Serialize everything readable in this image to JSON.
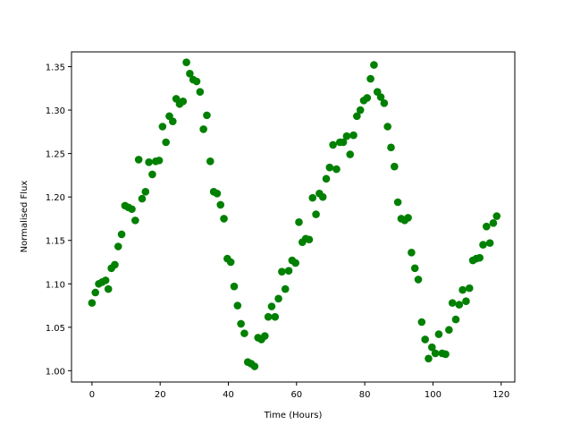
{
  "chart_data": {
    "type": "scatter",
    "xlabel": "Time (Hours)",
    "ylabel": "Normalised Flux",
    "xlim": [
      -6,
      124
    ],
    "ylim": [
      0.987,
      1.367
    ],
    "xticks": [
      0,
      20,
      40,
      60,
      80,
      100,
      120
    ],
    "yticks": [
      1.0,
      1.05,
      1.1,
      1.15,
      1.2,
      1.25,
      1.3,
      1.35
    ],
    "xtick_labels": [
      "0",
      "20",
      "40",
      "60",
      "80",
      "100",
      "120"
    ],
    "ytick_labels": [
      "1.00",
      "1.05",
      "1.10",
      "1.15",
      "1.20",
      "1.25",
      "1.30",
      "1.35"
    ],
    "grid": false,
    "marker_color": "#008000",
    "series": [
      {
        "points": [
          [
            0.0,
            1.078
          ],
          [
            1.0,
            1.09
          ],
          [
            2.0,
            1.1
          ],
          [
            3.0,
            1.102
          ],
          [
            4.0,
            1.104
          ],
          [
            4.8,
            1.094
          ],
          [
            5.7,
            1.118
          ],
          [
            6.7,
            1.122
          ],
          [
            7.7,
            1.143
          ],
          [
            8.7,
            1.157
          ],
          [
            9.7,
            1.19
          ],
          [
            10.7,
            1.188
          ],
          [
            11.7,
            1.186
          ],
          [
            12.7,
            1.173
          ],
          [
            13.7,
            1.243
          ],
          [
            14.7,
            1.198
          ],
          [
            15.7,
            1.206
          ],
          [
            16.7,
            1.24
          ],
          [
            17.7,
            1.226
          ],
          [
            18.7,
            1.241
          ],
          [
            19.7,
            1.242
          ],
          [
            20.7,
            1.281
          ],
          [
            21.7,
            1.263
          ],
          [
            22.7,
            1.293
          ],
          [
            23.7,
            1.287
          ],
          [
            24.7,
            1.313
          ],
          [
            25.7,
            1.307
          ],
          [
            26.7,
            1.31
          ],
          [
            27.7,
            1.355
          ],
          [
            28.7,
            1.342
          ],
          [
            29.7,
            1.335
          ],
          [
            30.7,
            1.333
          ],
          [
            31.7,
            1.321
          ],
          [
            32.7,
            1.278
          ],
          [
            33.7,
            1.294
          ],
          [
            34.7,
            1.241
          ],
          [
            35.7,
            1.206
          ],
          [
            36.7,
            1.204
          ],
          [
            37.7,
            1.191
          ],
          [
            38.7,
            1.175
          ],
          [
            39.7,
            1.129
          ],
          [
            40.7,
            1.125
          ],
          [
            41.7,
            1.097
          ],
          [
            42.7,
            1.075
          ],
          [
            43.7,
            1.054
          ],
          [
            44.7,
            1.043
          ],
          [
            45.7,
            1.01
          ],
          [
            46.7,
            1.008
          ],
          [
            47.7,
            1.005
          ],
          [
            48.7,
            1.038
          ],
          [
            49.7,
            1.036
          ],
          [
            50.7,
            1.04
          ],
          [
            51.7,
            1.062
          ],
          [
            52.7,
            1.074
          ],
          [
            53.7,
            1.062
          ],
          [
            54.7,
            1.083
          ],
          [
            55.7,
            1.114
          ],
          [
            56.7,
            1.094
          ],
          [
            57.7,
            1.115
          ],
          [
            58.7,
            1.127
          ],
          [
            59.7,
            1.124
          ],
          [
            60.7,
            1.171
          ],
          [
            61.7,
            1.148
          ],
          [
            62.7,
            1.152
          ],
          [
            63.7,
            1.151
          ],
          [
            64.7,
            1.199
          ],
          [
            65.7,
            1.18
          ],
          [
            66.7,
            1.204
          ],
          [
            67.7,
            1.2
          ],
          [
            68.7,
            1.221
          ],
          [
            69.7,
            1.234
          ],
          [
            70.7,
            1.26
          ],
          [
            71.7,
            1.232
          ],
          [
            72.7,
            1.263
          ],
          [
            73.7,
            1.263
          ],
          [
            74.7,
            1.27
          ],
          [
            75.7,
            1.249
          ],
          [
            76.7,
            1.271
          ],
          [
            77.7,
            1.293
          ],
          [
            78.7,
            1.3
          ],
          [
            79.7,
            1.311
          ],
          [
            80.7,
            1.314
          ],
          [
            81.7,
            1.336
          ],
          [
            82.7,
            1.352
          ],
          [
            83.7,
            1.321
          ],
          [
            84.7,
            1.315
          ],
          [
            85.7,
            1.308
          ],
          [
            86.7,
            1.281
          ],
          [
            87.7,
            1.257
          ],
          [
            88.7,
            1.235
          ],
          [
            89.7,
            1.194
          ],
          [
            90.7,
            1.175
          ],
          [
            91.7,
            1.173
          ],
          [
            92.7,
            1.176
          ],
          [
            93.7,
            1.136
          ],
          [
            94.7,
            1.118
          ],
          [
            95.7,
            1.105
          ],
          [
            96.7,
            1.056
          ],
          [
            97.7,
            1.036
          ],
          [
            98.7,
            1.014
          ],
          [
            99.7,
            1.027
          ],
          [
            100.7,
            1.02
          ],
          [
            101.7,
            1.042
          ],
          [
            102.7,
            1.02
          ],
          [
            103.7,
            1.019
          ],
          [
            104.7,
            1.047
          ],
          [
            105.7,
            1.078
          ],
          [
            106.7,
            1.059
          ],
          [
            107.7,
            1.076
          ],
          [
            108.7,
            1.093
          ],
          [
            109.7,
            1.08
          ],
          [
            110.7,
            1.095
          ],
          [
            111.7,
            1.127
          ],
          [
            112.7,
            1.129
          ],
          [
            113.7,
            1.13
          ],
          [
            114.7,
            1.145
          ],
          [
            115.7,
            1.166
          ],
          [
            116.7,
            1.147
          ],
          [
            117.7,
            1.17
          ],
          [
            118.7,
            1.178
          ]
        ]
      }
    ]
  }
}
